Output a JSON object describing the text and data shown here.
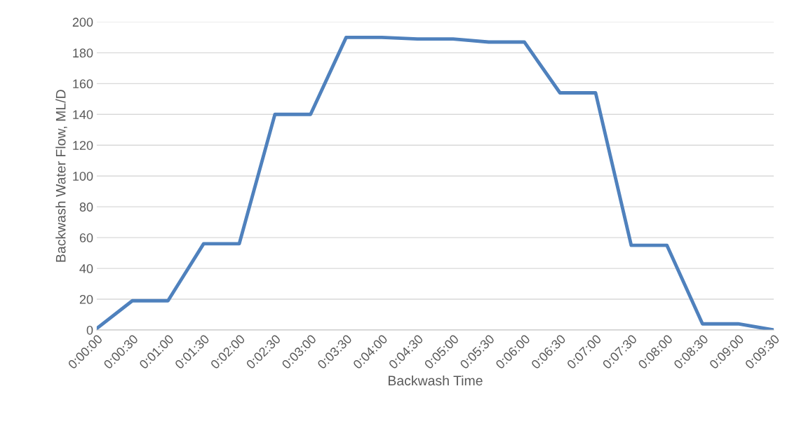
{
  "chart_data": {
    "type": "line",
    "xlabel": "Backwash Time",
    "ylabel": "Backwash Water Flow, ML/D",
    "categories": [
      "0:00:00",
      "0:00:30",
      "0:01:00",
      "0:01:30",
      "0:02:00",
      "0:02:30",
      "0:03:00",
      "0:03:30",
      "0:04:00",
      "0:04:30",
      "0:05:00",
      "0:05:30",
      "0:06:00",
      "0:06:30",
      "0:07:00",
      "0:07:30",
      "0:08:00",
      "0:08:30",
      "0:09:00",
      "0:09:30"
    ],
    "series": [
      {
        "color": "#4f81bd",
        "values": [
          1,
          19,
          19,
          56,
          56,
          140,
          140,
          190,
          190,
          189,
          189,
          187,
          187,
          154,
          154,
          55,
          55,
          4,
          4,
          0
        ]
      }
    ],
    "ylim": [
      0,
      200
    ],
    "yticks": [
      0,
      20,
      40,
      60,
      80,
      100,
      120,
      140,
      160,
      180,
      200
    ],
    "grid": "y",
    "marker": "none",
    "line_style": "solid"
  }
}
